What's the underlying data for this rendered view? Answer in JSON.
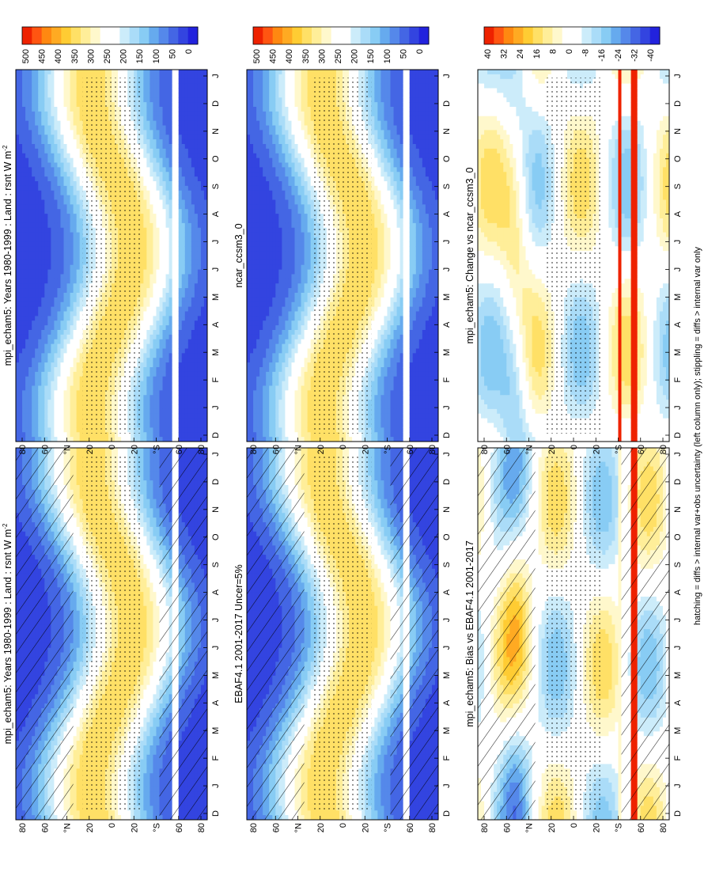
{
  "footnote": "hatching = diffs > internal var+obs uncertainty (left column only); stippling = diffs > internal var only",
  "colors": {
    "abs_scale": [
      "#2222dd",
      "#3344e0",
      "#4466e4",
      "#5588ea",
      "#66aaee",
      "#88ccf4",
      "#aadcf8",
      "#ccecfa",
      "#ffffff",
      "#ffffff",
      "#fff8cc",
      "#ffee99",
      "#ffe066",
      "#ffcc33",
      "#ffaa22",
      "#ff8811",
      "#ff5511",
      "#ee2200"
    ],
    "diff_scale": [
      "#2222dd",
      "#3344e0",
      "#4466e4",
      "#5588ea",
      "#66aaee",
      "#88ccf4",
      "#aadcf8",
      "#ccecfa",
      "#ffffff",
      "#ffffff",
      "#fff8cc",
      "#ffee99",
      "#ffe066",
      "#ffcc33",
      "#ffaa22",
      "#ff8811",
      "#ff5511",
      "#ee2200"
    ]
  },
  "chart_data": [
    {
      "id": "left-top",
      "type": "heatmap",
      "title": "mpi_echam5: Years 1980-1999 : Land : rsnt W m",
      "title_sup": "-2",
      "x_ticks": [
        "D",
        "J",
        "F",
        "M",
        "A",
        "M",
        "J",
        "J",
        "A",
        "S",
        "O",
        "N",
        "D",
        "J"
      ],
      "y_ticks": [
        "80",
        "60",
        "°N",
        "20",
        "0",
        "20",
        "°S",
        "60",
        "80"
      ],
      "colorbar_labels": [
        "500",
        "450",
        "400",
        "350",
        "300",
        "250",
        "200",
        "150",
        "100",
        "50",
        "0"
      ],
      "hatching": true,
      "stippling": true
    },
    {
      "id": "left-middle",
      "type": "heatmap",
      "title": "EBAF4.1 2001-2017 Uncer=5%",
      "title_sup": "",
      "x_ticks": [
        "D",
        "J",
        "F",
        "M",
        "A",
        "M",
        "J",
        "J",
        "A",
        "S",
        "O",
        "N",
        "D",
        "J"
      ],
      "y_ticks": [
        "80",
        "60",
        "°N",
        "20",
        "0",
        "20",
        "°S",
        "60",
        "80"
      ],
      "colorbar_labels": [
        "500",
        "450",
        "400",
        "350",
        "300",
        "250",
        "200",
        "150",
        "100",
        "50",
        "0"
      ],
      "hatching": true,
      "stippling": true
    },
    {
      "id": "left-bottom",
      "type": "heatmap",
      "title": "mpi_echam5: Bias vs EBAF4.1 2001-2017",
      "title_sup": "",
      "x_ticks": [
        "D",
        "J",
        "F",
        "M",
        "A",
        "M",
        "J",
        "J",
        "A",
        "S",
        "O",
        "N",
        "D",
        "J"
      ],
      "y_ticks": [
        "80",
        "60",
        "°N",
        "20",
        "0",
        "20",
        "°S",
        "60",
        "80"
      ],
      "colorbar_labels": [
        "40",
        "32",
        "24",
        "16",
        "8",
        "0",
        "-8",
        "-16",
        "-24",
        "-32",
        "-40"
      ],
      "hatching": true,
      "stippling": true
    },
    {
      "id": "right-top",
      "type": "heatmap",
      "title": "mpi_echam5: Years 1980-1999 : Land : rsnt W m",
      "title_sup": "-2",
      "x_ticks": [
        "D",
        "J",
        "F",
        "M",
        "A",
        "M",
        "J",
        "J",
        "A",
        "S",
        "O",
        "N",
        "D",
        "J"
      ],
      "y_ticks": [
        "80",
        "60",
        "°N",
        "20",
        "0",
        "20",
        "°S",
        "60",
        "80"
      ],
      "colorbar_labels": [
        "500",
        "450",
        "400",
        "350",
        "300",
        "250",
        "200",
        "150",
        "100",
        "50",
        "0"
      ],
      "hatching": false,
      "stippling": true
    },
    {
      "id": "right-middle",
      "type": "heatmap",
      "title": "ncar_ccsm3_0",
      "title_sup": "",
      "x_ticks": [
        "D",
        "J",
        "F",
        "M",
        "A",
        "M",
        "J",
        "J",
        "A",
        "S",
        "O",
        "N",
        "D",
        "J"
      ],
      "y_ticks": [
        "80",
        "60",
        "°N",
        "20",
        "0",
        "20",
        "°S",
        "60",
        "80"
      ],
      "colorbar_labels": [
        "500",
        "450",
        "400",
        "350",
        "300",
        "250",
        "200",
        "150",
        "100",
        "50",
        "0"
      ],
      "hatching": false,
      "stippling": true
    },
    {
      "id": "right-bottom",
      "type": "heatmap",
      "title": "mpi_echam5: Change vs ncar_ccsm3_0",
      "title_sup": "",
      "x_ticks": [
        "D",
        "J",
        "F",
        "M",
        "A",
        "M",
        "J",
        "J",
        "A",
        "S",
        "O",
        "N",
        "D",
        "J"
      ],
      "y_ticks": [
        "80",
        "60",
        "°N",
        "20",
        "0",
        "20",
        "°S",
        "60",
        "80"
      ],
      "colorbar_labels": [
        "40",
        "32",
        "24",
        "16",
        "8",
        "0",
        "-8",
        "-16",
        "-24",
        "-32",
        "-40"
      ],
      "hatching": false,
      "stippling": true
    }
  ]
}
